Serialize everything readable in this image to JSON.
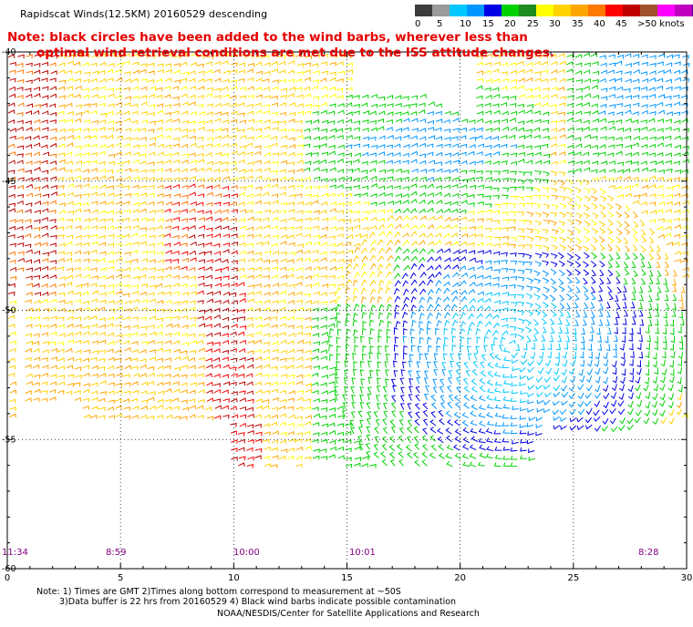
{
  "header": {
    "title": "Rapidscat Winds(12.5KM) 20160529 descending",
    "note_line1": "Note: black circles have been added to the wind barbs, wherever less than",
    "note_line2": "optimal wind retrieval conditions are met due to the ISS attitude changes."
  },
  "color_scale": {
    "colors": [
      "#3c3c3c",
      "#9a9a9a",
      "#00c8ff",
      "#0096ff",
      "#0000e6",
      "#00d200",
      "#1e8c1e",
      "#ffff00",
      "#ffd200",
      "#ffa500",
      "#ff7800",
      "#ff0000",
      "#be0000",
      "#a0522d",
      "#ff00ff",
      "#be00be",
      "#5000a0"
    ],
    "labels": [
      "0",
      "5",
      "10",
      "15",
      "20",
      "25",
      "30",
      "35",
      "40",
      "45",
      ">50 knots"
    ]
  },
  "map": {
    "lat_labels": [
      "-40",
      "-45",
      "-50",
      "-55",
      "-60"
    ],
    "lon_labels": [
      "0",
      "5",
      "10",
      "15",
      "20",
      "25",
      "30"
    ],
    "time_labels": [
      "11:34",
      "8:59",
      "10:00",
      "10:01",
      "8:28"
    ]
  },
  "footer": {
    "line1": "Note: 1) Times are GMT 2)Times along bottom correspond to measurement at ~50S",
    "line2": "3)Data buffer is 22 hrs from 20160529 4) Black wind barbs indicate possible contamination",
    "line3": "NOAA/NESDIS/Center for Satellite Applications and Research"
  }
}
